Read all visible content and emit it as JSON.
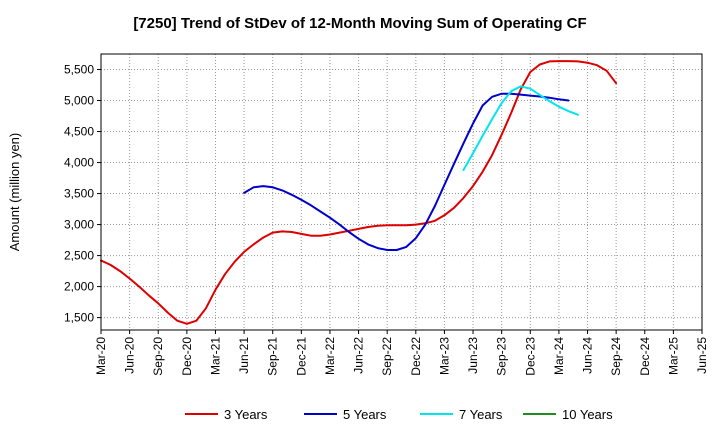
{
  "chart_data": {
    "type": "line",
    "title": "[7250]  Trend of StDev of 12-Month Moving Sum of Operating CF",
    "ylabel": "Amount (million yen)",
    "xlabel": "",
    "ylim": [
      1300,
      5750
    ],
    "yticks": [
      1500,
      2000,
      2500,
      3000,
      3500,
      4000,
      4500,
      5000,
      5500
    ],
    "ytick_labels": [
      "1,500",
      "2,000",
      "2,500",
      "3,000",
      "3,500",
      "4,000",
      "4,500",
      "5,000",
      "5,500"
    ],
    "xticks": [
      "Mar-20",
      "Jun-20",
      "Sep-20",
      "Dec-20",
      "Mar-21",
      "Jun-21",
      "Sep-21",
      "Dec-21",
      "Mar-22",
      "Jun-22",
      "Sep-22",
      "Dec-22",
      "Mar-23",
      "Jun-23",
      "Sep-23",
      "Dec-23",
      "Mar-24",
      "Jun-24",
      "Sep-24",
      "Dec-24",
      "Mar-25",
      "Jun-25"
    ],
    "grid": true,
    "legend_position": "bottom",
    "series": [
      {
        "name": "3 Years",
        "color": "#dd0000",
        "points": [
          [
            0,
            2420
          ],
          [
            1,
            2350
          ],
          [
            2,
            2250
          ],
          [
            3,
            2130
          ],
          [
            4,
            2000
          ],
          [
            5,
            1860
          ],
          [
            6,
            1730
          ],
          [
            7,
            1580
          ],
          [
            8,
            1450
          ],
          [
            9,
            1400
          ],
          [
            10,
            1450
          ],
          [
            11,
            1650
          ],
          [
            12,
            1950
          ],
          [
            13,
            2200
          ],
          [
            14,
            2400
          ],
          [
            15,
            2560
          ],
          [
            16,
            2680
          ],
          [
            17,
            2790
          ],
          [
            18,
            2870
          ],
          [
            19,
            2890
          ],
          [
            20,
            2880
          ],
          [
            21,
            2850
          ],
          [
            22,
            2820
          ],
          [
            23,
            2820
          ],
          [
            24,
            2840
          ],
          [
            25,
            2870
          ],
          [
            26,
            2900
          ],
          [
            27,
            2930
          ],
          [
            28,
            2960
          ],
          [
            29,
            2980
          ],
          [
            30,
            2990
          ],
          [
            31,
            2990
          ],
          [
            32,
            2990
          ],
          [
            33,
            3000
          ],
          [
            34,
            3020
          ],
          [
            35,
            3060
          ],
          [
            36,
            3150
          ],
          [
            37,
            3270
          ],
          [
            38,
            3430
          ],
          [
            39,
            3620
          ],
          [
            40,
            3850
          ],
          [
            41,
            4120
          ],
          [
            42,
            4450
          ],
          [
            43,
            4800
          ],
          [
            44,
            5180
          ],
          [
            45,
            5460
          ],
          [
            46,
            5580
          ],
          [
            47,
            5630
          ],
          [
            48,
            5635
          ],
          [
            49,
            5635
          ],
          [
            50,
            5630
          ],
          [
            51,
            5610
          ],
          [
            52,
            5570
          ],
          [
            53,
            5480
          ],
          [
            54,
            5280
          ]
        ]
      },
      {
        "name": "5 Years",
        "color": "#0000cc",
        "points": [
          [
            15,
            3510
          ],
          [
            16,
            3600
          ],
          [
            17,
            3620
          ],
          [
            18,
            3600
          ],
          [
            19,
            3550
          ],
          [
            20,
            3480
          ],
          [
            21,
            3400
          ],
          [
            22,
            3310
          ],
          [
            23,
            3210
          ],
          [
            24,
            3110
          ],
          [
            25,
            3000
          ],
          [
            26,
            2880
          ],
          [
            27,
            2770
          ],
          [
            28,
            2680
          ],
          [
            29,
            2620
          ],
          [
            30,
            2590
          ],
          [
            31,
            2590
          ],
          [
            32,
            2640
          ],
          [
            33,
            2780
          ],
          [
            34,
            3000
          ],
          [
            35,
            3300
          ],
          [
            36,
            3640
          ],
          [
            37,
            3980
          ],
          [
            38,
            4310
          ],
          [
            39,
            4630
          ],
          [
            40,
            4920
          ],
          [
            41,
            5060
          ],
          [
            42,
            5110
          ],
          [
            43,
            5110
          ],
          [
            44,
            5095
          ],
          [
            45,
            5080
          ],
          [
            46,
            5065
          ],
          [
            47,
            5045
          ],
          [
            48,
            5020
          ],
          [
            49,
            5000
          ]
        ]
      },
      {
        "name": "7 Years",
        "color": "#00e5ee",
        "points": [
          [
            38,
            3880
          ],
          [
            39,
            4150
          ],
          [
            40,
            4430
          ],
          [
            41,
            4700
          ],
          [
            42,
            4960
          ],
          [
            43,
            5150
          ],
          [
            44,
            5230
          ],
          [
            45,
            5190
          ],
          [
            46,
            5090
          ],
          [
            47,
            4990
          ],
          [
            48,
            4900
          ],
          [
            49,
            4830
          ],
          [
            50,
            4770
          ]
        ]
      },
      {
        "name": "10 Years",
        "color": "#228b22",
        "points": []
      }
    ]
  }
}
